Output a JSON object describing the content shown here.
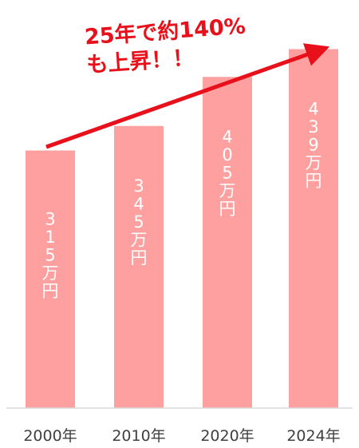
{
  "chart_data": {
    "type": "bar",
    "categories": [
      "2000年",
      "2010年",
      "2020年",
      "2024年"
    ],
    "values": [
      315,
      345,
      405,
      439
    ],
    "data_labels": [
      "315万円",
      "345万円",
      "405万円",
      "439万円"
    ],
    "title": "",
    "xlabel": "",
    "ylabel": "",
    "ylim": [
      0,
      460
    ],
    "grid": false,
    "legend": "none",
    "annotation": {
      "lines": [
        "25年で約140%",
        "も上昇！！"
      ]
    },
    "colors": {
      "bar": "#ffa0a0",
      "arrow": "#e8101a",
      "axis": "#d9d9d9",
      "category_text": "#404040",
      "bar_text": "#ffffff"
    }
  }
}
